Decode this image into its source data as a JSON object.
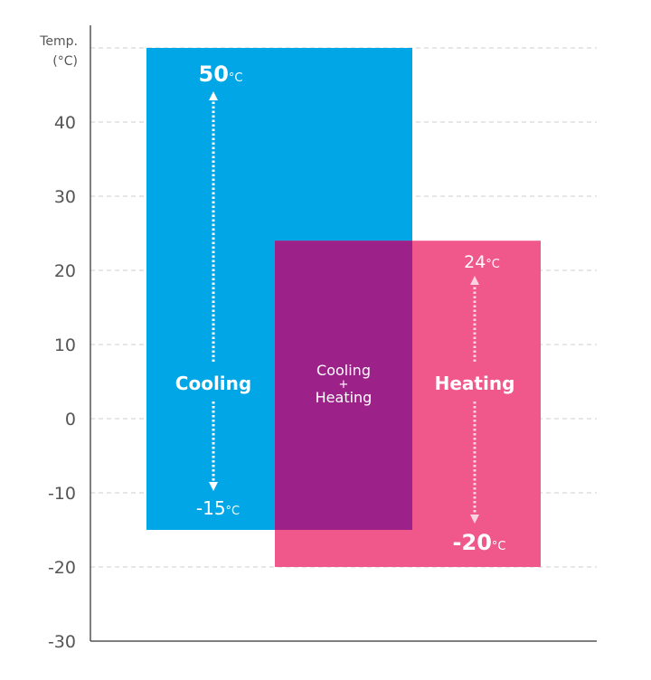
{
  "chart_data": {
    "type": "range_bar",
    "title": "",
    "ylabel": "Temp.",
    "ylabel_unit": "(°C)",
    "ylim": [
      -30,
      50
    ],
    "yticks": [
      40,
      30,
      20,
      10,
      0,
      -10,
      -20,
      -30
    ],
    "ytick_labels": [
      "40",
      "30",
      "20",
      "10",
      "0",
      "-10",
      "-20",
      "-30"
    ],
    "grid": true,
    "series": [
      {
        "name": "Cooling",
        "low": -15,
        "high": 50,
        "color": "#00a6e6",
        "high_label": {
          "value": "50",
          "unit": "°C"
        },
        "low_label": {
          "value": "-15",
          "unit": "°C"
        }
      },
      {
        "name": "Heating",
        "low": -20,
        "high": 24,
        "color": "#f0588b",
        "high_label": {
          "value": "24",
          "unit": "°C"
        },
        "low_label": {
          "value": "-20",
          "unit": "°C"
        }
      }
    ],
    "overlap": {
      "line1": "Cooling",
      "line2": "+",
      "line3": "Heating",
      "color": "#9c2289"
    },
    "arrow_colors": {
      "cooling": "#ffffff",
      "heating": "#fdd3e2"
    }
  }
}
